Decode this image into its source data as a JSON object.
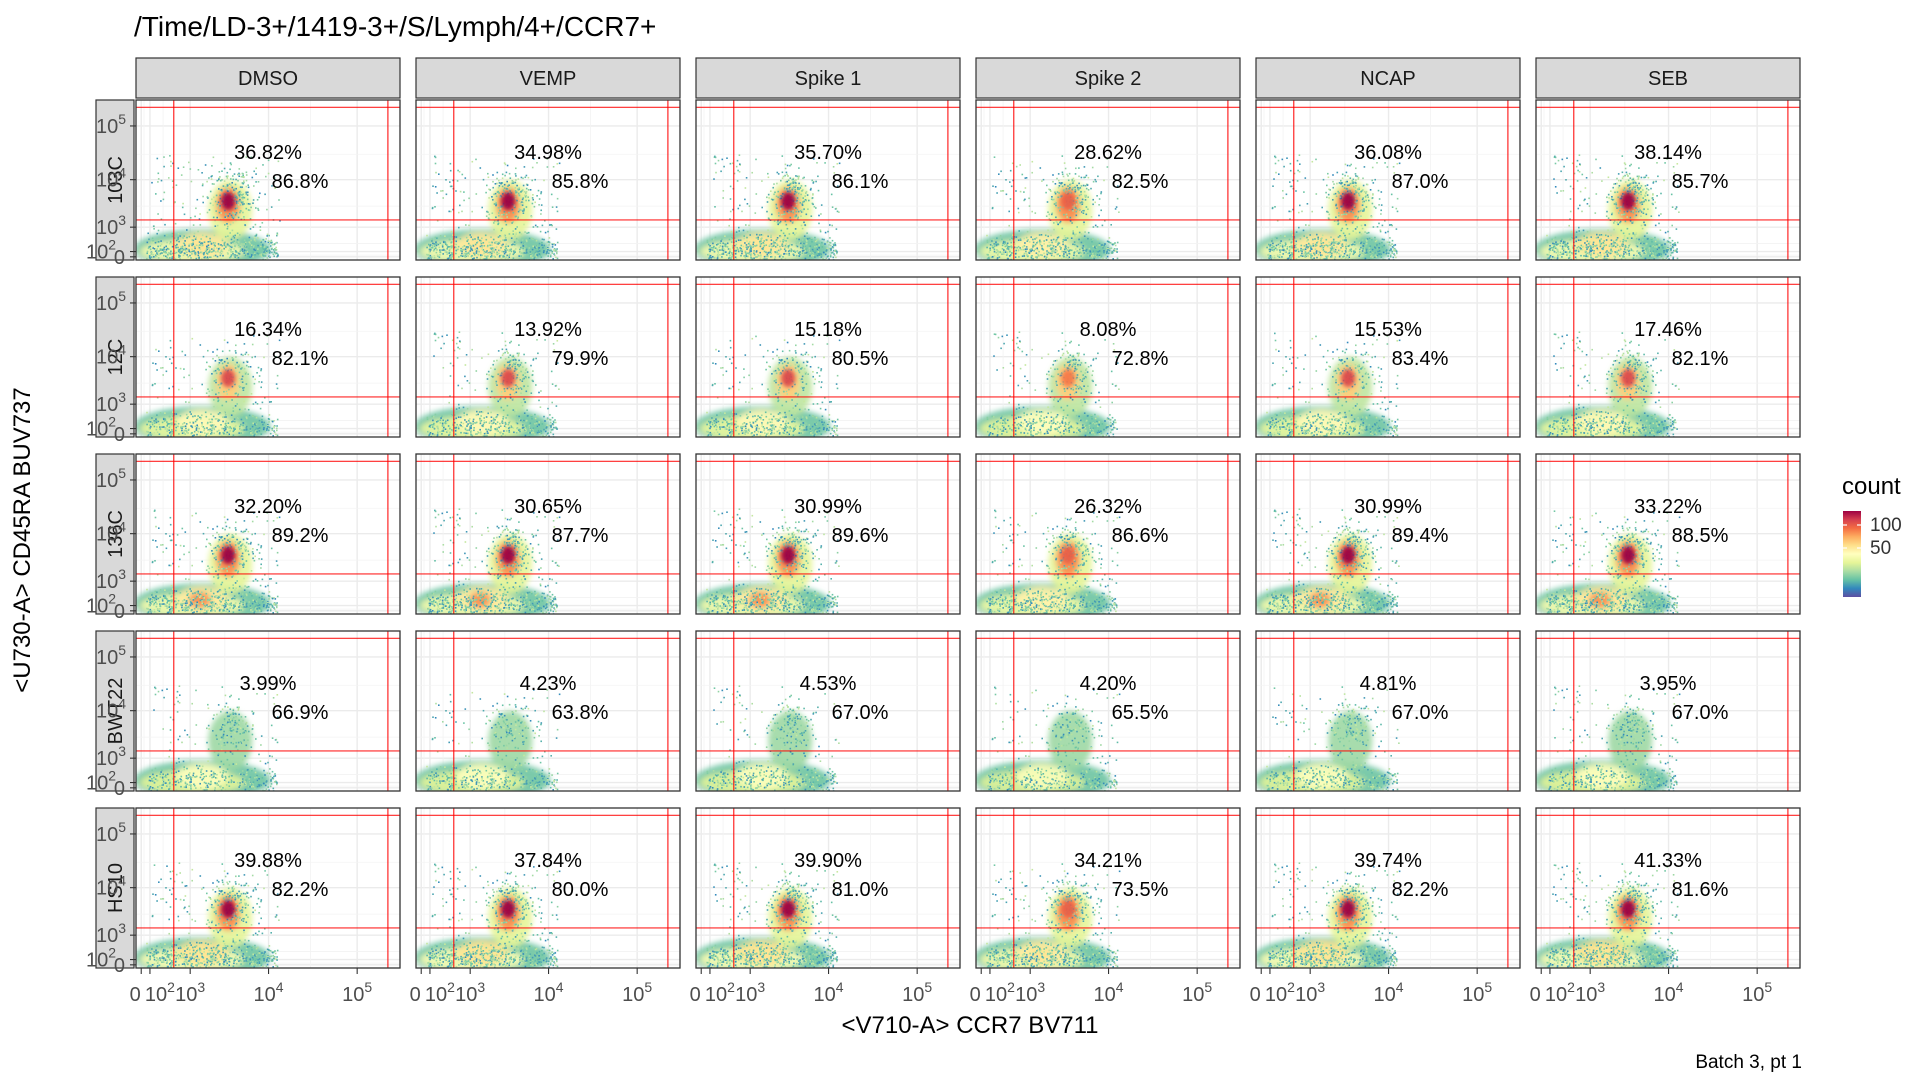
{
  "chart_data": {
    "type": "heatmap",
    "plot_kind": "faceted 2D density (hexbin) flow cytometry plot",
    "title": "/Time/LD-3+/1419-3+/S/Lymph/4+/CCR7+",
    "xlabel": "<V710-A> CCR7 BV711",
    "ylabel": "<U730-A> CD45RA BUV737",
    "caption": "Batch 3, pt 1",
    "x_scale": "biexponential",
    "y_scale": "biexponential",
    "x_ticks": [
      "0",
      "10^2",
      "10^3",
      "10^4",
      "10^5"
    ],
    "y_ticks": [
      "0",
      "10^2",
      "10^3",
      "10^4",
      "10^5"
    ],
    "grid": true,
    "gate_lines_color": "#ff0000",
    "legend": {
      "title": "count",
      "position": "right",
      "ticks": [
        "100",
        "50"
      ],
      "colors": [
        "#5e4fa2",
        "#3288bd",
        "#66c2a5",
        "#abdda4",
        "#e6f598",
        "#ffffbf",
        "#fee08b",
        "#fdae61",
        "#f46d43",
        "#d53e4f",
        "#9e0142"
      ]
    },
    "columns": [
      "DMSO",
      "VEMP",
      "Spike 1",
      "Spike 2",
      "NCAP",
      "SEB"
    ],
    "rows": [
      "103C",
      "12C",
      "136C",
      "BWT22",
      "HS10"
    ],
    "upper_gate_percent": [
      [
        "36.82%",
        "34.98%",
        "35.70%",
        "28.62%",
        "36.08%",
        "38.14%"
      ],
      [
        "16.34%",
        "13.92%",
        "15.18%",
        "8.08%",
        "15.53%",
        "17.46%"
      ],
      [
        "32.20%",
        "30.65%",
        "30.99%",
        "26.32%",
        "30.99%",
        "33.22%"
      ],
      [
        "3.99%",
        "4.23%",
        "4.53%",
        "4.20%",
        "4.81%",
        "3.95%"
      ],
      [
        "39.88%",
        "37.84%",
        "39.90%",
        "34.21%",
        "39.74%",
        "41.33%"
      ]
    ],
    "inner_gate_percent": [
      [
        "86.8%",
        "85.8%",
        "86.1%",
        "82.5%",
        "87.0%",
        "85.7%"
      ],
      [
        "82.1%",
        "79.9%",
        "80.5%",
        "72.8%",
        "83.4%",
        "82.1%"
      ],
      [
        "89.2%",
        "87.7%",
        "89.6%",
        "86.6%",
        "89.4%",
        "88.5%"
      ],
      [
        "66.9%",
        "63.8%",
        "67.0%",
        "65.5%",
        "67.0%",
        "67.0%"
      ],
      [
        "82.2%",
        "80.0%",
        "81.0%",
        "73.5%",
        "82.2%",
        "81.6%"
      ]
    ]
  }
}
